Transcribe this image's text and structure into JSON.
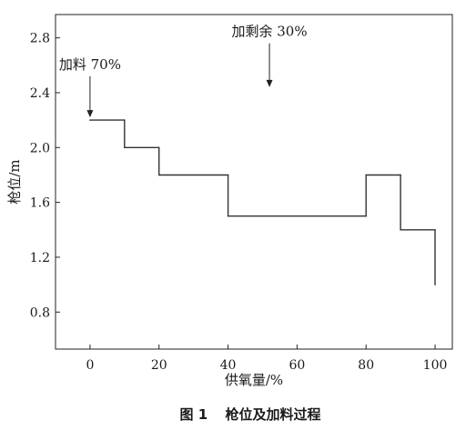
{
  "chart_data": {
    "type": "line",
    "title": "",
    "xlabel": "供氧量/%",
    "ylabel": "枪位/m",
    "xlim": [
      -10,
      105
    ],
    "ylim": [
      0.53,
      2.97
    ],
    "xticks": [
      0,
      20,
      40,
      60,
      80,
      100
    ],
    "yticks": [
      0.8,
      1.2,
      1.6,
      2.0,
      2.4,
      2.8
    ],
    "xtick_labels": [
      "0",
      "20",
      "40",
      "60",
      "80",
      "100"
    ],
    "ytick_labels": [
      "0.8",
      "1.2",
      "1.6",
      "2.0",
      "2.4",
      "2.8"
    ],
    "grid": false,
    "series": [
      {
        "line_style": "step",
        "color": "#333333",
        "points": [
          [
            0,
            2.2
          ],
          [
            10,
            2.2
          ],
          [
            10,
            2.0
          ],
          [
            20,
            2.0
          ],
          [
            20,
            1.8
          ],
          [
            40,
            1.8
          ],
          [
            40,
            1.5
          ],
          [
            80,
            1.5
          ],
          [
            80,
            1.8
          ],
          [
            90,
            1.8
          ],
          [
            90,
            1.4
          ],
          [
            100,
            1.4
          ],
          [
            100,
            1.0
          ]
        ]
      }
    ],
    "annotations": [
      {
        "text": "加料 70%",
        "x": 0,
        "y_arrow_tip": 2.22,
        "y_arrow_tail": 2.52
      },
      {
        "text": "加剩余 30%",
        "x": 52,
        "y_arrow_tip": 2.44,
        "y_arrow_tail": 2.76
      }
    ]
  },
  "caption": {
    "label": "图 1",
    "text": "枪位及加料过程"
  }
}
